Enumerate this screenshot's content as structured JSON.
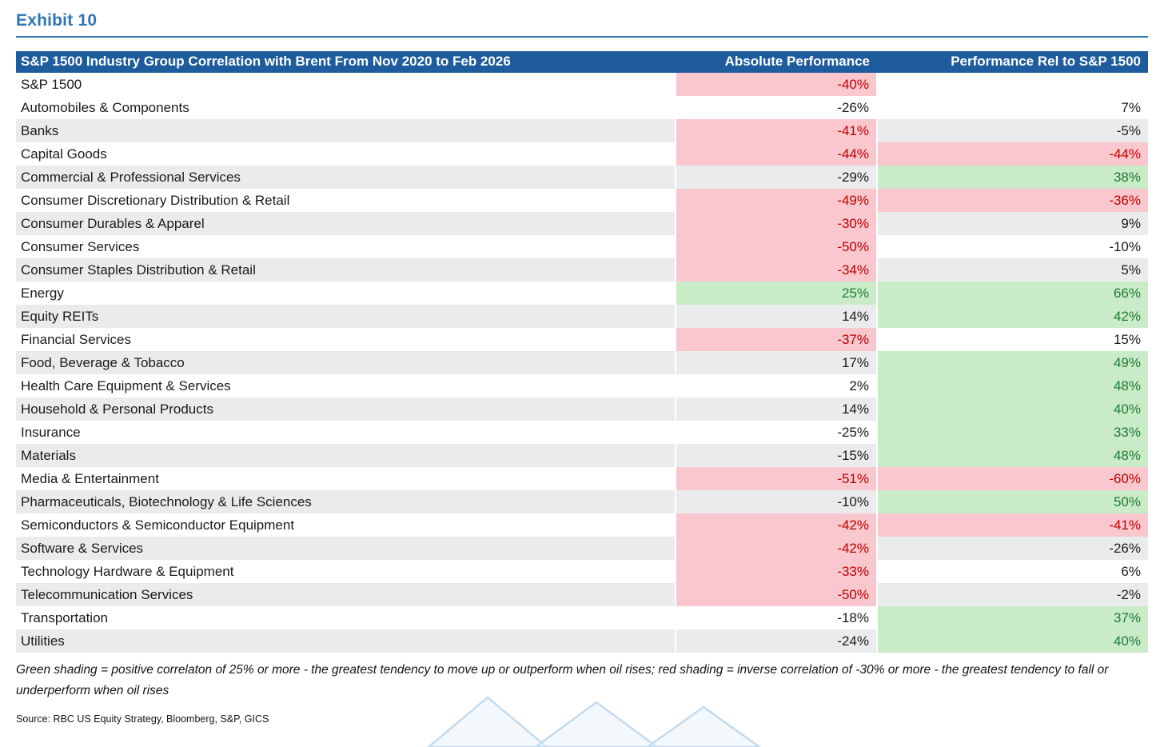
{
  "page": {
    "exhibit_label": "Exhibit 10"
  },
  "colors": {
    "accent_blue": "#2E75B6",
    "header_bg": "#1E5C9E",
    "stripe": "#E9EBED",
    "red_fill": "#F9C7CD",
    "red_text": "#C00000",
    "green_fill": "#C9EBC8",
    "green_text": "#1E7B34"
  },
  "table": {
    "columns": [
      "S&P 1500 Industry Group Correlation with Brent From Nov 2020 to Feb 2026",
      "Absolute Performance",
      "Performance Rel to S&P 1500"
    ],
    "rows": [
      {
        "label": "S&P 1500",
        "abs": "-40%",
        "abs_shade": "red",
        "rel": "",
        "rel_shade": "none"
      },
      {
        "label": "Automobiles & Components",
        "abs": "-26%",
        "abs_shade": "none",
        "rel": "7%",
        "rel_shade": "none"
      },
      {
        "label": "Banks",
        "abs": "-41%",
        "abs_shade": "red",
        "rel": "-5%",
        "rel_shade": "none"
      },
      {
        "label": "Capital Goods",
        "abs": "-44%",
        "abs_shade": "red",
        "rel": "-44%",
        "rel_shade": "red"
      },
      {
        "label": "Commercial & Professional Services",
        "abs": "-29%",
        "abs_shade": "none",
        "rel": "38%",
        "rel_shade": "green"
      },
      {
        "label": "Consumer Discretionary Distribution & Retail",
        "abs": "-49%",
        "abs_shade": "red",
        "rel": "-36%",
        "rel_shade": "red"
      },
      {
        "label": "Consumer Durables & Apparel",
        "abs": "-30%",
        "abs_shade": "red",
        "rel": "9%",
        "rel_shade": "none"
      },
      {
        "label": "Consumer Services",
        "abs": "-50%",
        "abs_shade": "red",
        "rel": "-10%",
        "rel_shade": "none"
      },
      {
        "label": "Consumer Staples Distribution & Retail",
        "abs": "-34%",
        "abs_shade": "red",
        "rel": "5%",
        "rel_shade": "none"
      },
      {
        "label": "Energy",
        "abs": "25%",
        "abs_shade": "green",
        "rel": "66%",
        "rel_shade": "green"
      },
      {
        "label": "Equity REITs",
        "abs": "14%",
        "abs_shade": "none",
        "rel": "42%",
        "rel_shade": "green"
      },
      {
        "label": "Financial Services",
        "abs": "-37%",
        "abs_shade": "red",
        "rel": "15%",
        "rel_shade": "none"
      },
      {
        "label": "Food, Beverage & Tobacco",
        "abs": "17%",
        "abs_shade": "none",
        "rel": "49%",
        "rel_shade": "green"
      },
      {
        "label": "Health Care Equipment & Services",
        "abs": "2%",
        "abs_shade": "none",
        "rel": "48%",
        "rel_shade": "green"
      },
      {
        "label": "Household & Personal Products",
        "abs": "14%",
        "abs_shade": "none",
        "rel": "40%",
        "rel_shade": "green"
      },
      {
        "label": "Insurance",
        "abs": "-25%",
        "abs_shade": "none",
        "rel": "33%",
        "rel_shade": "green"
      },
      {
        "label": "Materials",
        "abs": "-15%",
        "abs_shade": "none",
        "rel": "48%",
        "rel_shade": "green"
      },
      {
        "label": "Media & Entertainment",
        "abs": "-51%",
        "abs_shade": "red",
        "rel": "-60%",
        "rel_shade": "red"
      },
      {
        "label": "Pharmaceuticals, Biotechnology & Life Sciences",
        "abs": "-10%",
        "abs_shade": "none",
        "rel": "50%",
        "rel_shade": "green"
      },
      {
        "label": "Semiconductors & Semiconductor Equipment",
        "abs": "-42%",
        "abs_shade": "red",
        "rel": "-41%",
        "rel_shade": "red"
      },
      {
        "label": "Software & Services",
        "abs": "-42%",
        "abs_shade": "red",
        "rel": "-26%",
        "rel_shade": "none"
      },
      {
        "label": "Technology Hardware & Equipment",
        "abs": "-33%",
        "abs_shade": "red",
        "rel": "6%",
        "rel_shade": "none"
      },
      {
        "label": "Telecommunication Services",
        "abs": "-50%",
        "abs_shade": "red",
        "rel": "-2%",
        "rel_shade": "none"
      },
      {
        "label": "Transportation",
        "abs": "-18%",
        "abs_shade": "none",
        "rel": "37%",
        "rel_shade": "green"
      },
      {
        "label": "Utilities",
        "abs": "-24%",
        "abs_shade": "none",
        "rel": "40%",
        "rel_shade": "green"
      }
    ]
  },
  "footnote": "Green shading = positive correlaton of 25% or more - the greatest tendency to move up or outperform when oil rises; red shading = inverse correlation of -30% or more - the greatest tendency to fall or underperform when oil rises",
  "source": "Source: RBC US Equity Strategy, Bloomberg, S&P, GICS",
  "chart_data": {
    "type": "table",
    "title": "S&P 1500 Industry Group Correlation with Brent From Nov 2020 to Feb 2026",
    "columns": [
      "Industry Group",
      "Absolute Performance (%)",
      "Performance Rel to S&P 1500 (%)"
    ],
    "rows": [
      [
        "S&P 1500",
        -40,
        null
      ],
      [
        "Automobiles & Components",
        -26,
        7
      ],
      [
        "Banks",
        -41,
        -5
      ],
      [
        "Capital Goods",
        -44,
        -44
      ],
      [
        "Commercial & Professional Services",
        -29,
        38
      ],
      [
        "Consumer Discretionary Distribution & Retail",
        -49,
        -36
      ],
      [
        "Consumer Durables & Apparel",
        -30,
        9
      ],
      [
        "Consumer Services",
        -50,
        -10
      ],
      [
        "Consumer Staples Distribution & Retail",
        -34,
        5
      ],
      [
        "Energy",
        25,
        66
      ],
      [
        "Equity REITs",
        14,
        42
      ],
      [
        "Financial Services",
        -37,
        15
      ],
      [
        "Food, Beverage & Tobacco",
        17,
        49
      ],
      [
        "Health Care Equipment & Services",
        2,
        48
      ],
      [
        "Household & Personal Products",
        14,
        40
      ],
      [
        "Insurance",
        -25,
        33
      ],
      [
        "Materials",
        -15,
        48
      ],
      [
        "Media & Entertainment",
        -51,
        -60
      ],
      [
        "Pharmaceuticals, Biotechnology & Life Sciences",
        -10,
        50
      ],
      [
        "Semiconductors & Semiconductor Equipment",
        -42,
        -41
      ],
      [
        "Software & Services",
        -42,
        -26
      ],
      [
        "Technology Hardware & Equipment",
        -33,
        6
      ],
      [
        "Telecommunication Services",
        -50,
        -2
      ],
      [
        "Transportation",
        -18,
        37
      ],
      [
        "Utilities",
        -24,
        40
      ]
    ],
    "legend": {
      "green_shading": "positive correlation of 25% or more",
      "red_shading": "inverse correlation of -30% or more"
    }
  }
}
